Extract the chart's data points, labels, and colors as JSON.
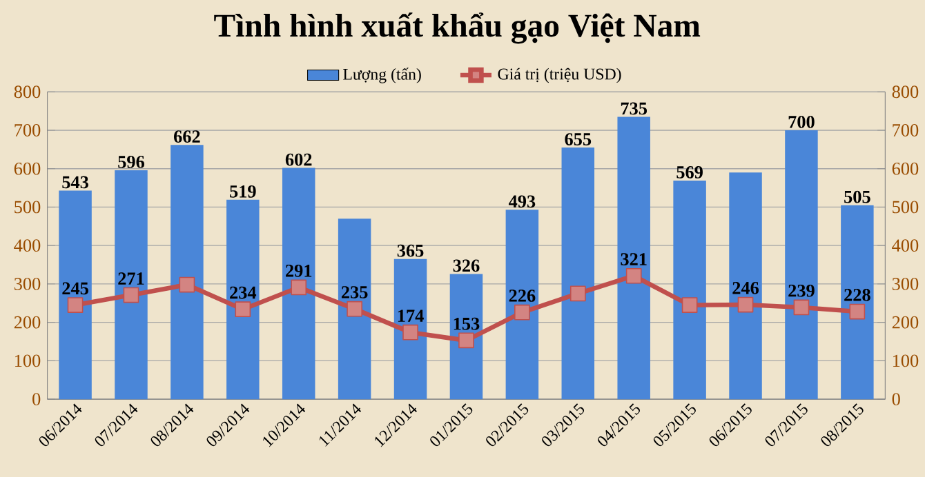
{
  "chart_data": {
    "type": "bar",
    "title": "Tình hình xuất khẩu gạo Việt Nam",
    "categories": [
      "06/2014",
      "07/2014",
      "08/2014",
      "09/2014",
      "10/2014",
      "11/2014",
      "12/2014",
      "01/2015",
      "02/2015",
      "03/2015",
      "04/2015",
      "05/2015",
      "06/2015",
      "07/2015",
      "08/2015"
    ],
    "series": [
      {
        "name": "Lượng (tấn)",
        "color": "#4a86d8",
        "values": [
          543,
          596,
          662,
          519,
          602,
          470,
          365,
          326,
          493,
          655,
          735,
          569,
          590,
          700,
          505
        ],
        "value_labels": [
          "543",
          "596",
          "662",
          "519",
          "602",
          null,
          "365",
          "326",
          "493",
          "655",
          "735",
          "569",
          null,
          "700",
          "505"
        ]
      },
      {
        "name": "Giá trị (triệu USD)",
        "type": "line",
        "axis": "y2",
        "color": "#c0504d",
        "marker": "square",
        "values": [
          245,
          271,
          298,
          234,
          291,
          235,
          174,
          153,
          226,
          275,
          321,
          245,
          246,
          239,
          228
        ],
        "value_labels": [
          "245",
          "271",
          null,
          "234",
          "291",
          "235",
          "174",
          "153",
          "226",
          null,
          "321",
          null,
          "246",
          "239",
          "228"
        ]
      }
    ],
    "ylim": [
      0,
      800
    ],
    "yticks": [
      0,
      100,
      200,
      300,
      400,
      500,
      600,
      700,
      800
    ],
    "y2lim": [
      0,
      800
    ],
    "y2ticks": [
      0,
      100,
      200,
      300,
      400,
      500,
      600,
      700,
      800
    ],
    "grid": "y",
    "legend": "top"
  }
}
